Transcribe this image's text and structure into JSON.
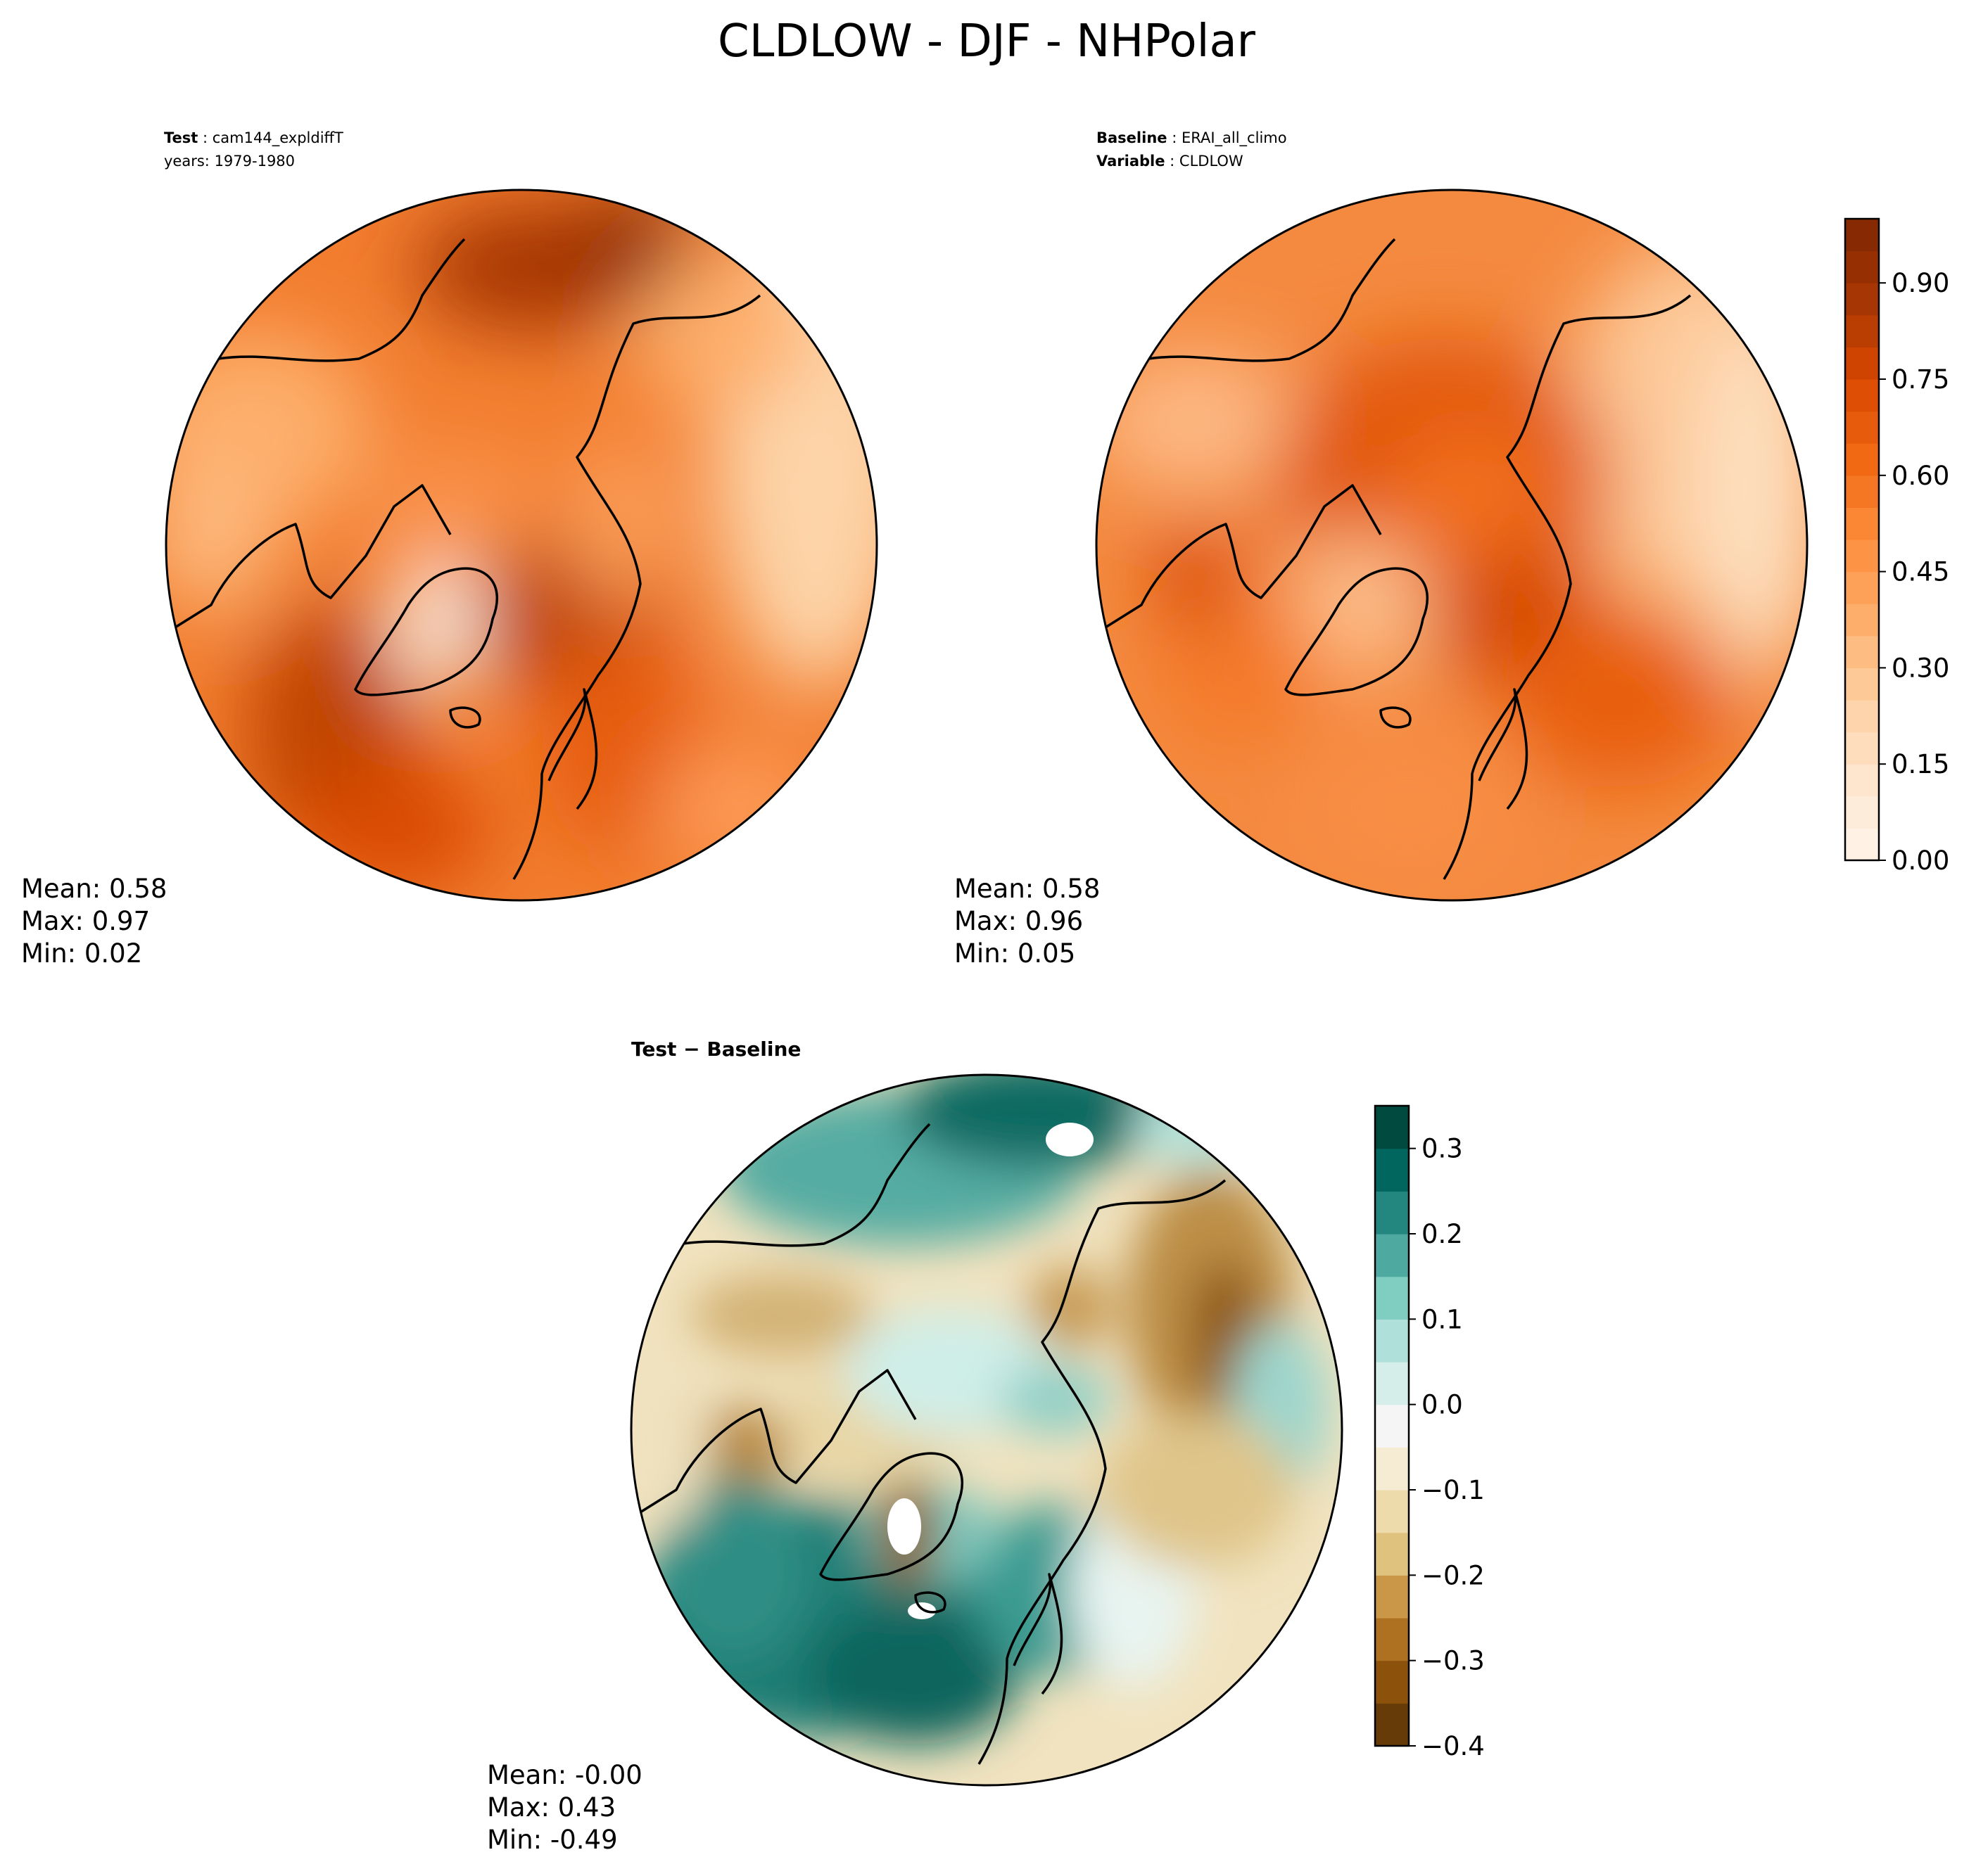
{
  "figure": {
    "suptitle": "CLDLOW - DJF - NHPolar"
  },
  "colors": {
    "oranges": [
      "#fff5eb",
      "#fee6ce",
      "#fdd0a2",
      "#fdae6b",
      "#fd8d3c",
      "#f16913",
      "#d94801",
      "#a63603",
      "#7f2704"
    ],
    "brbg": [
      "#543005",
      "#8c510a",
      "#bf812d",
      "#dfc27d",
      "#f6e8c3",
      "#f5f5f5",
      "#c7eae5",
      "#80cdc1",
      "#35978f",
      "#01665e",
      "#003c30"
    ],
    "coast": "#000000"
  },
  "chart_data": [
    {
      "type": "heatmap",
      "projection": "north-polar-stereographic",
      "header": [
        {
          "label": "Test",
          "value": "cam144_expldiffT"
        },
        {
          "label": "years",
          "value": "1979-1980"
        }
      ],
      "stats": {
        "mean": "Mean:  0.58",
        "max": "Max:  0.97",
        "min": "Min:  0.02"
      },
      "colormap": "Oranges",
      "range": [
        0.0,
        1.0
      ],
      "field_values": {
        "mean": 0.58,
        "max": 0.97,
        "min": 0.02
      }
    },
    {
      "type": "heatmap",
      "projection": "north-polar-stereographic",
      "header": [
        {
          "label": "Baseline",
          "value": "ERAI_all_climo"
        },
        {
          "label": "Variable",
          "value": "CLDLOW"
        }
      ],
      "stats": {
        "mean": "Mean:  0.58",
        "max": "Max:  0.96",
        "min": "Min:  0.05"
      },
      "colormap": "Oranges",
      "range": [
        0.0,
        1.0
      ],
      "field_values": {
        "mean": 0.58,
        "max": 0.96,
        "min": 0.05
      },
      "colorbar": {
        "ticks": [
          0.0,
          0.15,
          0.3,
          0.45,
          0.6,
          0.75,
          0.9
        ],
        "tick_labels": [
          "0.00",
          "0.15",
          "0.30",
          "0.45",
          "0.60",
          "0.75",
          "0.90"
        ],
        "levels": 20
      }
    },
    {
      "type": "heatmap",
      "projection": "north-polar-stereographic",
      "title": "Test − Baseline",
      "stats": {
        "mean": "Mean: -0.00",
        "max": "Max:  0.43",
        "min": "Min: -0.49"
      },
      "colormap": "BrBG",
      "range": [
        -0.4,
        0.35
      ],
      "field_values": {
        "mean": -0.0,
        "max": 0.43,
        "min": -0.49
      },
      "colorbar": {
        "ticks": [
          -0.4,
          -0.3,
          -0.2,
          -0.1,
          0.0,
          0.1,
          0.2,
          0.3
        ],
        "tick_labels": [
          "−0.4",
          "−0.3",
          "−0.2",
          "−0.1",
          "0.0",
          "0.1",
          "0.2",
          "0.3"
        ],
        "levels": 15
      }
    }
  ]
}
